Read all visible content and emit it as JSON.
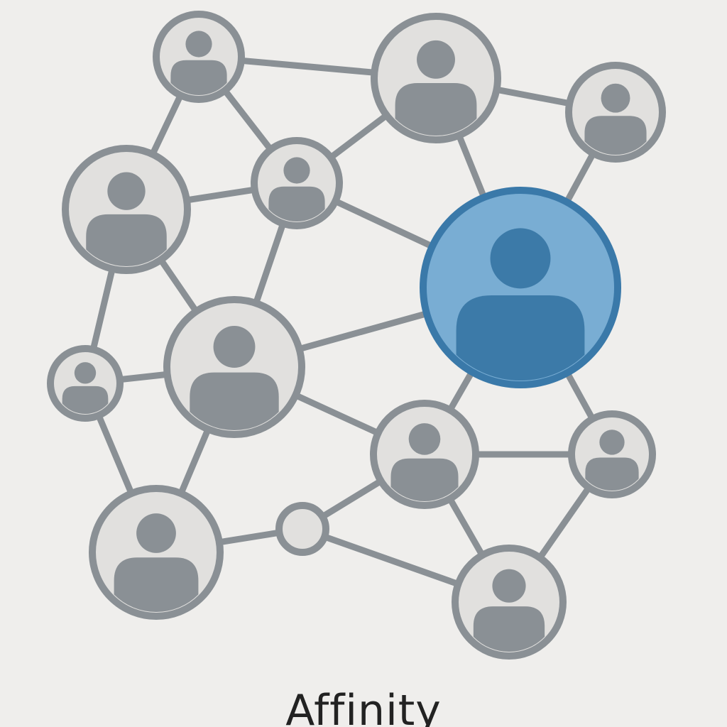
{
  "caption": "Affinity",
  "colors": {
    "background": "#efeeec",
    "node_fill": "#e1e0de",
    "node_stroke": "#8a9095",
    "highlight_fill": "#79add3",
    "highlight_stroke": "#3a79a9",
    "highlight_avatar": "#3c7aa8"
  },
  "nodes": [
    {
      "id": "n1",
      "kind": "person",
      "icon": "person-icon"
    },
    {
      "id": "n2",
      "kind": "person",
      "icon": "person-icon"
    },
    {
      "id": "n3",
      "kind": "person",
      "icon": "person-icon"
    },
    {
      "id": "n4",
      "kind": "person",
      "icon": "person-icon"
    },
    {
      "id": "n5",
      "kind": "person",
      "icon": "person-icon"
    },
    {
      "id": "n6",
      "kind": "person",
      "icon": "person-icon",
      "highlighted": true
    },
    {
      "id": "n7",
      "kind": "person",
      "icon": "person-icon"
    },
    {
      "id": "n8",
      "kind": "person",
      "icon": "person-icon"
    },
    {
      "id": "n9",
      "kind": "person",
      "icon": "person-icon"
    },
    {
      "id": "n10",
      "kind": "person",
      "icon": "person-icon"
    },
    {
      "id": "n11",
      "kind": "person",
      "icon": "person-icon"
    },
    {
      "id": "n12",
      "kind": "empty"
    },
    {
      "id": "n13",
      "kind": "person",
      "icon": "person-icon"
    }
  ],
  "edges": [
    [
      "n1",
      "n2"
    ],
    [
      "n1",
      "n4"
    ],
    [
      "n1",
      "n5"
    ],
    [
      "n2",
      "n3"
    ],
    [
      "n2",
      "n5"
    ],
    [
      "n2",
      "n6"
    ],
    [
      "n3",
      "n6"
    ],
    [
      "n4",
      "n5"
    ],
    [
      "n4",
      "n7"
    ],
    [
      "n4",
      "n8"
    ],
    [
      "n5",
      "n6"
    ],
    [
      "n5",
      "n7"
    ],
    [
      "n6",
      "n7"
    ],
    [
      "n6",
      "n9"
    ],
    [
      "n6",
      "n10"
    ],
    [
      "n7",
      "n8"
    ],
    [
      "n7",
      "n9"
    ],
    [
      "n7",
      "n11"
    ],
    [
      "n8",
      "n11"
    ],
    [
      "n9",
      "n10"
    ],
    [
      "n9",
      "n12"
    ],
    [
      "n9",
      "n13"
    ],
    [
      "n10",
      "n13"
    ],
    [
      "n11",
      "n12"
    ],
    [
      "n12",
      "n13"
    ]
  ]
}
